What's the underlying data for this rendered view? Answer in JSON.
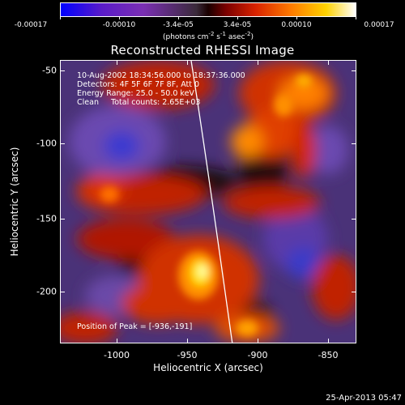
{
  "colorbar": {
    "ticks": [
      "-0.00017",
      "-0.00010",
      "-3.4e-05",
      "3.4e-05",
      "0.00010",
      "0.00017"
    ],
    "units_main": "(photons cm",
    "units_exp1": "-2",
    "units_mid": " s",
    "units_exp2": "-1",
    "units_mid2": " asec",
    "units_exp3": "-2",
    "units_end": ")"
  },
  "title": "Reconstructed RHESSI Image",
  "info": {
    "time_range": "10-Aug-2002 18:34:56.000 to 18:37:36.000",
    "detectors": "Detectors: 4F 5F 6F 7F 8F, Att 0",
    "energy": "Energy Range: 25.0 - 50.0 keV",
    "clean": "Clean     Total counts: 2.65E+03",
    "peak": "Position of Peak = [-936,-191]"
  },
  "axes": {
    "xlabel": "Heliocentric X (arcsec)",
    "ylabel": "Heliocentric Y (arcsec)",
    "xticks": [
      "-1000",
      "-950",
      "-900",
      "-850"
    ],
    "yticks": [
      "-50",
      "-100",
      "-150",
      "-200"
    ]
  },
  "timestamp": "25-Apr-2013 05:47"
}
